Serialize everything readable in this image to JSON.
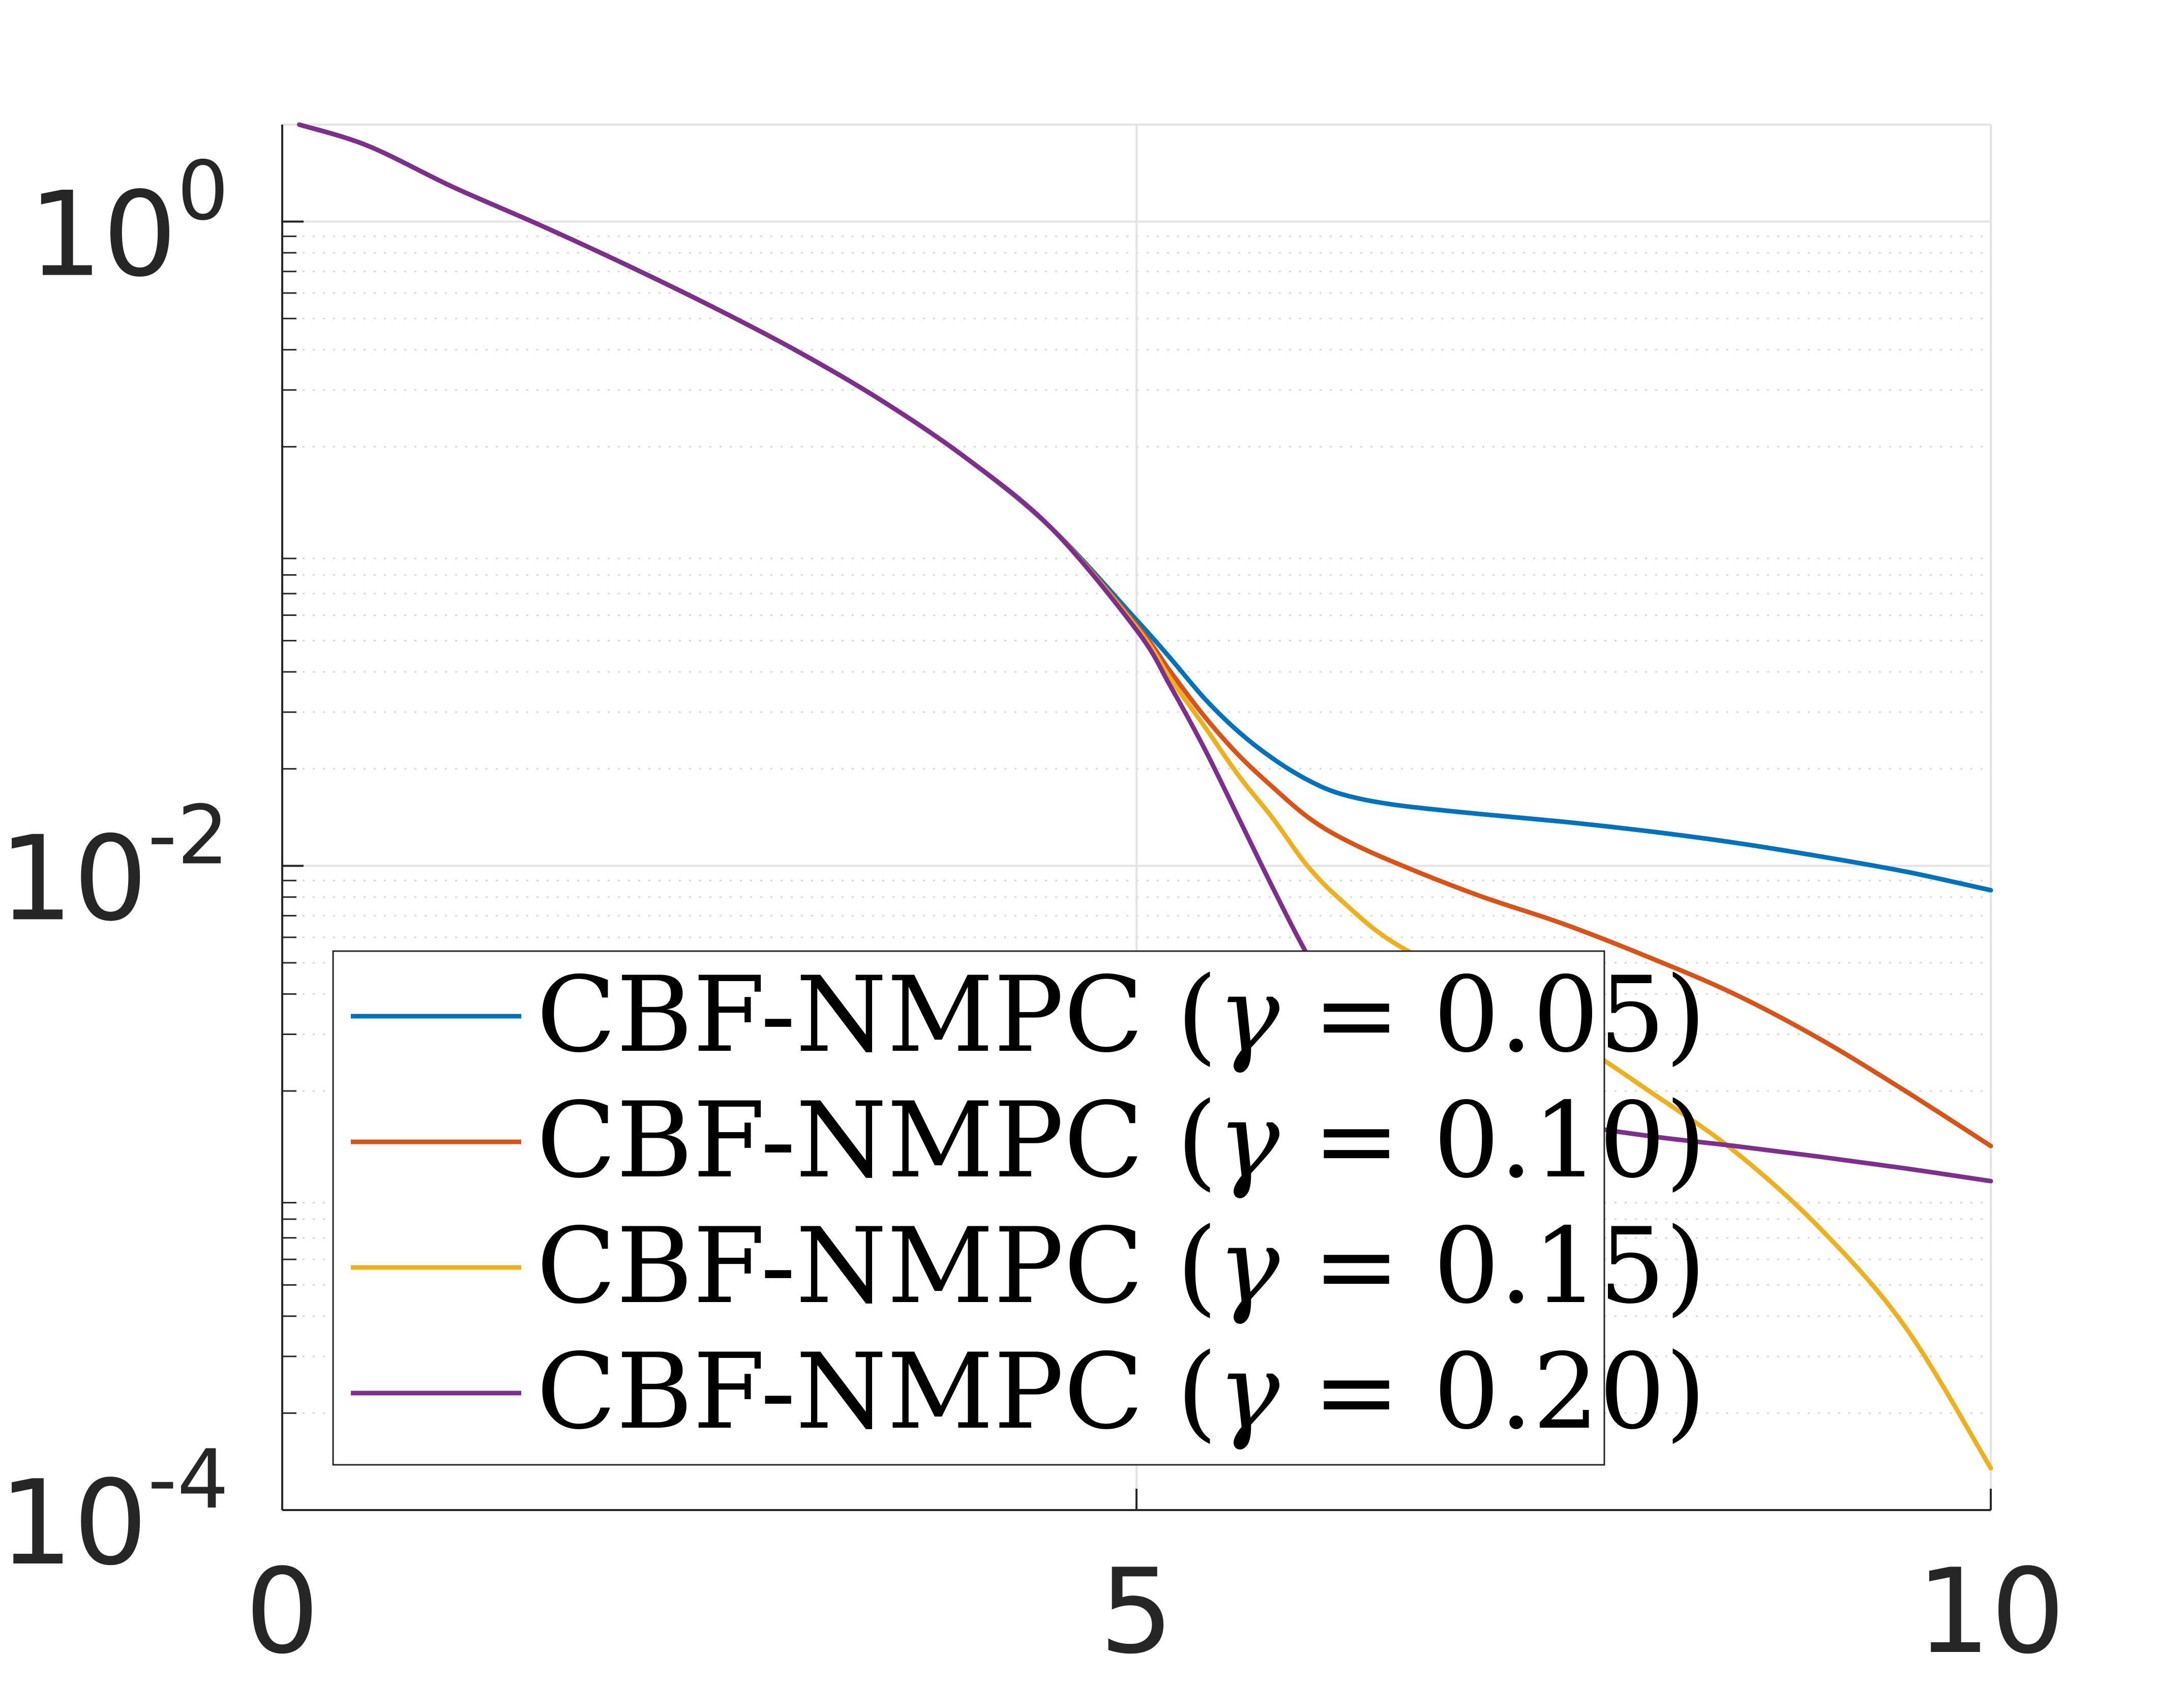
{
  "chart_data": {
    "type": "line",
    "title": "",
    "xlabel": "",
    "ylabel": "",
    "xlim": [
      0,
      10
    ],
    "ylim": [
      0.0001,
      2.0
    ],
    "yscale": "log",
    "grid": true,
    "minor_grid": true,
    "legend_position": "bottom-left",
    "x_ticks": [
      {
        "value": 0,
        "label": "0"
      },
      {
        "value": 5,
        "label": "5"
      },
      {
        "value": 10,
        "label": "10"
      }
    ],
    "y_ticks": [
      {
        "value": 1,
        "base": "10",
        "exp": "0"
      },
      {
        "value": 0.01,
        "base": "10",
        "exp": "-2"
      },
      {
        "value": 0.0001,
        "base": "10",
        "exp": "-4"
      }
    ],
    "series": [
      {
        "name": "CBF-NMPC (γ = 0.05)",
        "color": "#0072BD",
        "points": [
          [
            0.1,
            2.0
          ],
          [
            0.5,
            1.72
          ],
          [
            1.0,
            1.28
          ],
          [
            1.5,
            0.98
          ],
          [
            2.0,
            0.74
          ],
          [
            2.5,
            0.55
          ],
          [
            3.0,
            0.4
          ],
          [
            3.5,
            0.28
          ],
          [
            4.0,
            0.185
          ],
          [
            4.5,
            0.112
          ],
          [
            5.0,
            0.058
          ],
          [
            5.2,
            0.044
          ],
          [
            5.4,
            0.033
          ],
          [
            5.6,
            0.026
          ],
          [
            5.8,
            0.0215
          ],
          [
            6.0,
            0.0185
          ],
          [
            6.2,
            0.0167
          ],
          [
            6.5,
            0.0155
          ],
          [
            7.0,
            0.0145
          ],
          [
            7.5,
            0.0137
          ],
          [
            8.0,
            0.0128
          ],
          [
            8.5,
            0.0118
          ],
          [
            9.0,
            0.0107
          ],
          [
            9.5,
            0.0096
          ],
          [
            10.0,
            0.0084
          ]
        ]
      },
      {
        "name": "CBF-NMPC (γ = 0.10)",
        "color": "#D95319",
        "points": [
          [
            0.1,
            2.0
          ],
          [
            0.5,
            1.72
          ],
          [
            1.0,
            1.28
          ],
          [
            1.5,
            0.98
          ],
          [
            2.0,
            0.74
          ],
          [
            2.5,
            0.55
          ],
          [
            3.0,
            0.4
          ],
          [
            3.5,
            0.28
          ],
          [
            4.0,
            0.185
          ],
          [
            4.5,
            0.112
          ],
          [
            5.0,
            0.056
          ],
          [
            5.2,
            0.04
          ],
          [
            5.4,
            0.029
          ],
          [
            5.6,
            0.022
          ],
          [
            5.8,
            0.0175
          ],
          [
            6.0,
            0.0142
          ],
          [
            6.2,
            0.0122
          ],
          [
            6.5,
            0.0103
          ],
          [
            7.0,
            0.0081
          ],
          [
            7.5,
            0.0066
          ],
          [
            8.0,
            0.0052
          ],
          [
            8.5,
            0.004
          ],
          [
            9.0,
            0.0029
          ],
          [
            9.5,
            0.002
          ],
          [
            10.0,
            0.00135
          ]
        ]
      },
      {
        "name": "CBF-NMPC (γ = 0.15)",
        "color": "#EDB120",
        "points": [
          [
            0.1,
            2.0
          ],
          [
            0.5,
            1.72
          ],
          [
            1.0,
            1.28
          ],
          [
            1.5,
            0.98
          ],
          [
            2.0,
            0.74
          ],
          [
            2.5,
            0.55
          ],
          [
            3.0,
            0.4
          ],
          [
            3.5,
            0.28
          ],
          [
            4.0,
            0.185
          ],
          [
            4.5,
            0.112
          ],
          [
            5.0,
            0.055
          ],
          [
            5.2,
            0.038
          ],
          [
            5.4,
            0.027
          ],
          [
            5.6,
            0.019
          ],
          [
            5.8,
            0.014
          ],
          [
            6.0,
            0.01
          ],
          [
            6.2,
            0.0078
          ],
          [
            6.5,
            0.0058
          ],
          [
            7.0,
            0.0042
          ],
          [
            7.5,
            0.003
          ],
          [
            8.0,
            0.002
          ],
          [
            8.5,
            0.0013
          ],
          [
            9.0,
            0.00075
          ],
          [
            9.5,
            0.00037
          ],
          [
            10.0,
            0.000135
          ]
        ]
      },
      {
        "name": "CBF-NMPC (γ = 0.20)",
        "color": "#7E2F8E",
        "points": [
          [
            0.1,
            2.0
          ],
          [
            0.5,
            1.72
          ],
          [
            1.0,
            1.28
          ],
          [
            1.5,
            0.98
          ],
          [
            2.0,
            0.74
          ],
          [
            2.5,
            0.55
          ],
          [
            3.0,
            0.4
          ],
          [
            3.5,
            0.28
          ],
          [
            4.0,
            0.185
          ],
          [
            4.5,
            0.112
          ],
          [
            5.0,
            0.054
          ],
          [
            5.2,
            0.036
          ],
          [
            5.4,
            0.023
          ],
          [
            5.6,
            0.014
          ],
          [
            5.8,
            0.0085
          ],
          [
            6.0,
            0.0053
          ],
          [
            6.2,
            0.0036
          ],
          [
            6.5,
            0.0025
          ],
          [
            7.0,
            0.0019
          ],
          [
            7.5,
            0.0016
          ],
          [
            8.0,
            0.00145
          ],
          [
            8.5,
            0.00135
          ],
          [
            9.0,
            0.00125
          ],
          [
            9.5,
            0.00115
          ],
          [
            10.0,
            0.00105
          ]
        ]
      }
    ],
    "legend": {
      "entries": [
        {
          "prefix": "CBF-NMPC (",
          "symbol": "γ",
          "suffix": " = 0.05)",
          "color": "#0072BD"
        },
        {
          "prefix": "CBF-NMPC (",
          "symbol": "γ",
          "suffix": " = 0.10)",
          "color": "#D95319"
        },
        {
          "prefix": "CBF-NMPC (",
          "symbol": "γ",
          "suffix": " = 0.15)",
          "color": "#EDB120"
        },
        {
          "prefix": "CBF-NMPC (",
          "symbol": "γ",
          "suffix": " = 0.20)",
          "color": "#7E2F8E"
        }
      ]
    }
  }
}
